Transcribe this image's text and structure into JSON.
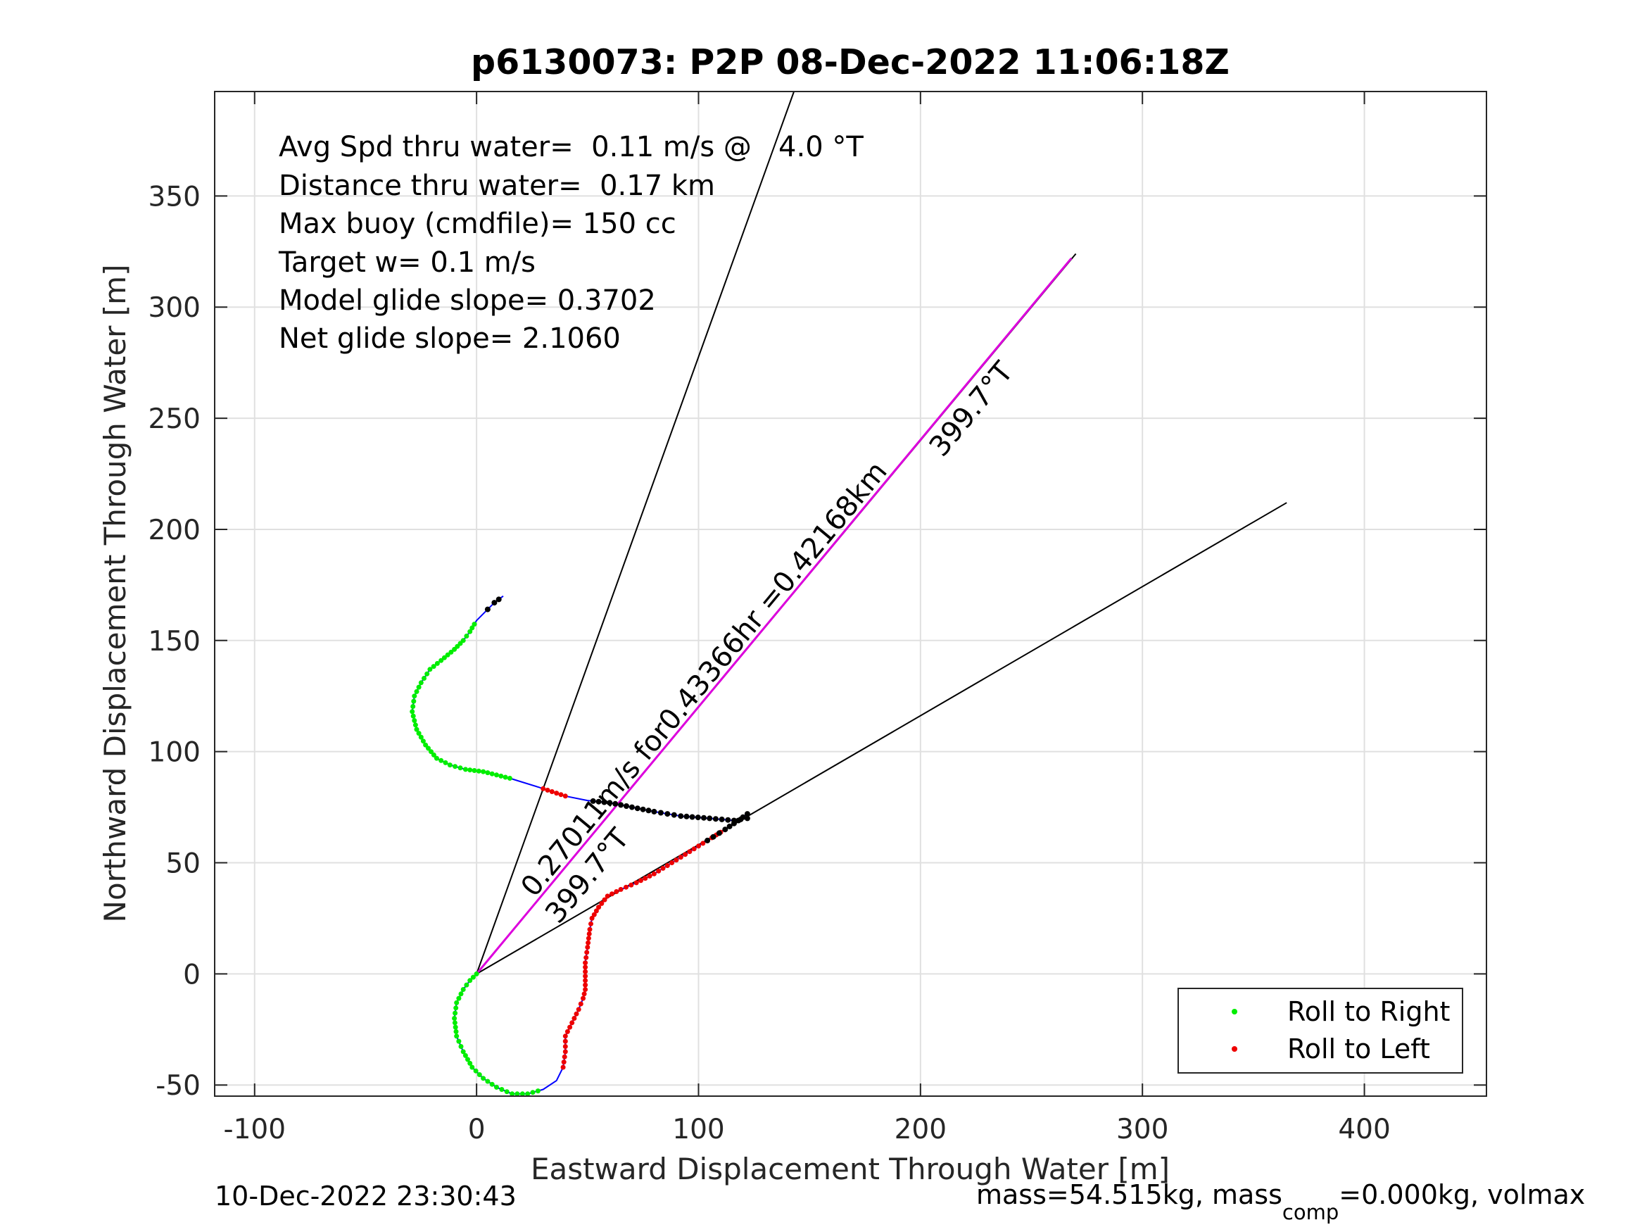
{
  "chart_data": {
    "type": "scatter",
    "title": "p6130073: P2P 08-Dec-2022 11:06:18Z",
    "xlabel": "Eastward Displacement Through Water [m]",
    "ylabel": "Northward Displacement Through Water [m]",
    "xlim": [
      -118,
      455
    ],
    "ylim": [
      -55,
      397
    ],
    "xticks": [
      -100,
      0,
      100,
      200,
      300,
      400
    ],
    "yticks": [
      -50,
      0,
      50,
      100,
      150,
      200,
      250,
      300,
      350
    ],
    "xtick_labels": [
      "-100",
      "0",
      "100",
      "200",
      "300",
      "400"
    ],
    "ytick_labels": [
      "-50",
      "0",
      "50",
      "100",
      "150",
      "200",
      "250",
      "300",
      "350"
    ],
    "grid": true,
    "legend_position": "bottom-right",
    "annotations": [
      "Avg Spd thru water=  0.11 m/s @   4.0 °T",
      "Distance thru water=  0.17 km",
      "Max buoy (cmdfile)= 150 cc",
      "Target w= 0.1 m/s",
      "Model glide slope= 0.3702",
      "Net glide slope= 2.1060"
    ],
    "track_path": [
      [
        0,
        0
      ],
      [
        -3,
        -3
      ],
      [
        -6,
        -7
      ],
      [
        -9,
        -13
      ],
      [
        -10,
        -20
      ],
      [
        -9,
        -28
      ],
      [
        -6,
        -35
      ],
      [
        -2,
        -42
      ],
      [
        3,
        -47
      ],
      [
        9,
        -51
      ],
      [
        16,
        -54
      ],
      [
        23,
        -54
      ],
      [
        30,
        -52
      ],
      [
        36,
        -48
      ],
      [
        39,
        -42
      ],
      [
        40,
        -35
      ],
      [
        40,
        -28
      ],
      [
        43,
        -22
      ],
      [
        46,
        -16
      ],
      [
        48,
        -11
      ],
      [
        49,
        -7
      ],
      [
        49,
        -1
      ],
      [
        49,
        5
      ],
      [
        50,
        12
      ],
      [
        51,
        20
      ],
      [
        52,
        25
      ],
      [
        55,
        30
      ],
      [
        59,
        35
      ],
      [
        65,
        38
      ],
      [
        72,
        41
      ],
      [
        80,
        45
      ],
      [
        88,
        50
      ],
      [
        96,
        55
      ],
      [
        104,
        60
      ],
      [
        112,
        65
      ],
      [
        118,
        69
      ],
      [
        122,
        72
      ],
      [
        122,
        70
      ],
      [
        116,
        69
      ],
      [
        105,
        70
      ],
      [
        92,
        71
      ],
      [
        80,
        73
      ],
      [
        70,
        75
      ],
      [
        60,
        77
      ],
      [
        50,
        78
      ],
      [
        40,
        80
      ],
      [
        28,
        84
      ],
      [
        15,
        88
      ],
      [
        3,
        91
      ],
      [
        -5,
        92
      ],
      [
        -12,
        94
      ],
      [
        -18,
        97
      ],
      [
        -23,
        103
      ],
      [
        -27,
        110
      ],
      [
        -29,
        118
      ],
      [
        -28,
        125
      ],
      [
        -25,
        131
      ],
      [
        -21,
        137
      ],
      [
        -16,
        141
      ],
      [
        -10,
        146
      ],
      [
        -6,
        150
      ],
      [
        -3,
        154
      ],
      [
        0,
        159
      ],
      [
        5,
        164
      ],
      [
        8,
        167
      ],
      [
        12,
        170
      ]
    ],
    "roll_right_segments": [
      [
        0,
        12
      ],
      [
        47,
        62
      ]
    ],
    "roll_left_segments": [
      [
        14,
        36
      ],
      [
        45,
        46
      ]
    ],
    "black_point_segments": [
      [
        33,
        44
      ],
      [
        63,
        65
      ]
    ],
    "wedge_lines": [
      {
        "from": [
          0,
          0
        ],
        "to": [
          143,
          397
        ]
      },
      {
        "from": [
          0,
          0
        ],
        "to": [
          270,
          324
        ]
      },
      {
        "from": [
          0,
          0
        ],
        "to": [
          365,
          212
        ]
      }
    ],
    "current_line": {
      "from": [
        0,
        0
      ],
      "to": [
        268,
        322
      ]
    },
    "line_labels": [
      {
        "text": "0.27011m/s for0.43366hr =0.42168km",
        "at": [
          26,
          34
        ],
        "angle_deg": -50.3
      },
      {
        "text": "399.7°T",
        "at": [
          37,
          22
        ],
        "angle_deg": -50.3
      },
      {
        "text": "399.7°T",
        "at": [
          210,
          232
        ],
        "angle_deg": -50.3
      }
    ],
    "legend": [
      "Roll to Right",
      "Roll to Left"
    ],
    "colors": {
      "track": "#0000ff",
      "roll_right": "#00ee00",
      "roll_left": "#ee0000",
      "black_points": "#000000",
      "current_line": "#dd00dd",
      "wedge": "#000000",
      "grid": "#e0e0e0",
      "axes": "#262626"
    }
  },
  "footer": {
    "left": "10-Dec-2022 23:30:43",
    "right_main": "mass=54.515kg, mass",
    "right_sub": "comp",
    "right_tail": "=0.000kg, volmax"
  }
}
